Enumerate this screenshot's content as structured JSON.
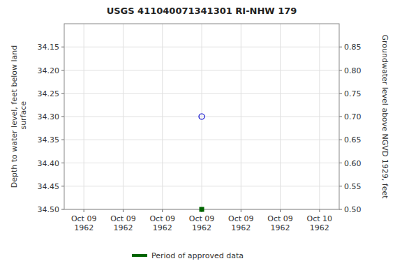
{
  "chart_data": {
    "type": "scatter",
    "title": "USGS 411040071341301 RI-NHW  179",
    "y_label": "Depth to water level, feet below land\n surface",
    "y2_label": "Groundwater level above NGVD 1929, feet",
    "categories": [
      "Oct 09\n1962",
      "Oct 09\n1962",
      "Oct 09\n1962",
      "Oct 09\n1962",
      "Oct 09\n1962",
      "Oct 09\n1962",
      "Oct 10\n1962"
    ],
    "series": [
      {
        "color": "#0000cc",
        "marker": "circle",
        "values": [
          null,
          null,
          null,
          34.3,
          null,
          null,
          null
        ]
      },
      {
        "name": "Period of approved data",
        "color": "#006400",
        "marker": "square",
        "values": [
          null,
          null,
          null,
          34.5,
          null,
          null,
          null
        ]
      }
    ],
    "ylim": [
      34.5,
      34.1
    ],
    "yticks": [
      34.15,
      {
        "value": 34.2,
        "label": "34.20"
      },
      34.25,
      {
        "value": 34.3,
        "label": "34.30"
      },
      34.35,
      {
        "value": 34.4,
        "label": "34.40"
      },
      34.45,
      {
        "value": 34.5,
        "label": "34.50"
      }
    ],
    "y2lim": [
      0.5,
      0.9
    ],
    "y2ticks": [
      0.85,
      {
        "value": 0.8,
        "label": "0.80"
      },
      0.75,
      {
        "value": 0.7,
        "label": "0.70"
      },
      0.65,
      {
        "value": 0.6,
        "label": "0.60"
      },
      0.55,
      {
        "value": 0.5,
        "label": "0.50"
      }
    ],
    "grid": true,
    "legend": "bottom"
  }
}
